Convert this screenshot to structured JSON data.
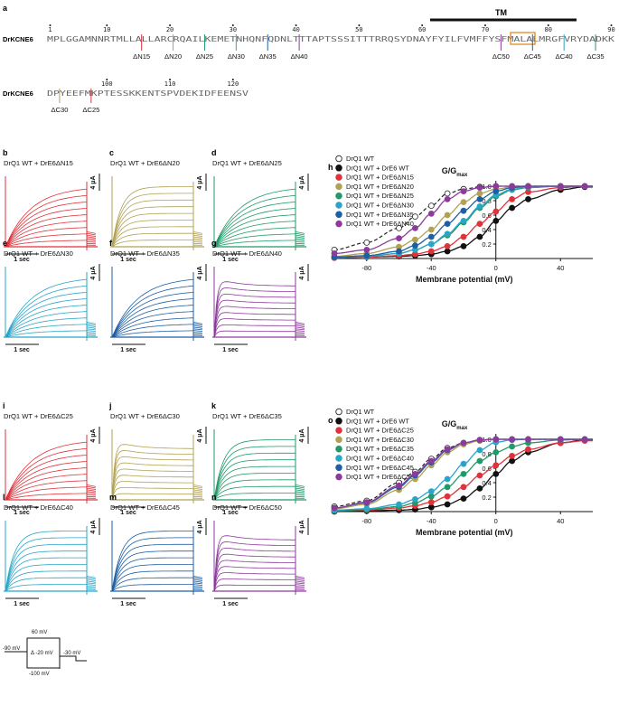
{
  "panel_letters": [
    "a",
    "b",
    "c",
    "d",
    "e",
    "f",
    "g",
    "h",
    "i",
    "j",
    "k",
    "l",
    "m",
    "n",
    "o"
  ],
  "sequence": {
    "protein": "DrKCNE6",
    "tm_label": "TM",
    "positions": [
      "1",
      "10",
      "20",
      "30",
      "40",
      "50",
      "60",
      "70",
      "80",
      "90",
      "100",
      "110",
      "120"
    ],
    "line1": "MPLGGAMNNRTMLLALLARCRQAILKEMETNHQNFQDNLTTTAPTSSSITTTRRQSYDNAYFYILFVMFFYSFMALALMRGFVRYDADKK",
    "line2": "DPYEEFMKPTESSKKENTSPVDEKIDFEENSV",
    "deletions_n": [
      {
        "label": "ΔN15",
        "color": "#e0323a"
      },
      {
        "label": "ΔN20",
        "color": "#b0a254"
      },
      {
        "label": "ΔN25",
        "color": "#1f9a68"
      },
      {
        "label": "ΔN30",
        "color": "#2aa5c8"
      },
      {
        "label": "ΔN35",
        "color": "#1e5fa3"
      },
      {
        "label": "ΔN40",
        "color": "#8e3a9d"
      }
    ],
    "deletions_c": [
      {
        "label": "ΔC50",
        "color": "#8e3a9d"
      },
      {
        "label": "ΔC45",
        "color": "#1e5fa3"
      },
      {
        "label": "ΔC40",
        "color": "#2aa5c8"
      },
      {
        "label": "ΔC35",
        "color": "#1f9a68"
      },
      {
        "label": "ΔC30",
        "color": "#b0a254"
      },
      {
        "label": "ΔC25",
        "color": "#e0323a"
      }
    ]
  },
  "traces": [
    {
      "title": "DrQ1 WT + DrE6ΔN15",
      "color": "#e0323a",
      "kind": "slow"
    },
    {
      "title": "DrQ1 WT + DrE6ΔN20",
      "color": "#b0a254",
      "kind": "fast"
    },
    {
      "title": "DrQ1 WT + DrE6ΔN25",
      "color": "#1f9a68",
      "kind": "slow"
    },
    {
      "title": "DrQ1 WT + DrE6ΔN30",
      "color": "#2aa5c8",
      "kind": "slow"
    },
    {
      "title": "DrQ1 WT + DrE6ΔN35",
      "color": "#1e5fa3",
      "kind": "slow"
    },
    {
      "title": "DrQ1 WT + DrE6ΔN40",
      "color": "#8e3a9d",
      "kind": "inact"
    },
    {
      "title": "DrQ1 WT + DrE6ΔC25",
      "color": "#e0323a",
      "kind": "slow"
    },
    {
      "title": "DrQ1 WT + DrE6ΔC30",
      "color": "#b0a254",
      "kind": "inact"
    },
    {
      "title": "DrQ1 WT + DrE6ΔC35",
      "color": "#1f9a68",
      "kind": "fast"
    },
    {
      "title": "DrQ1 WT + DrE6ΔC40",
      "color": "#2aa5c8",
      "kind": "fast"
    },
    {
      "title": "DrQ1 WT + DrE6ΔC45",
      "color": "#1e5fa3",
      "kind": "fast"
    },
    {
      "title": "DrQ1 WT + DrE6ΔC50",
      "color": "#8e3a9d",
      "kind": "inact"
    }
  ],
  "trace_scale": {
    "current": "4 μA",
    "time": "1 sec"
  },
  "protocol": {
    "top": "60 mV",
    "step": "Δ -20 mV",
    "hold": "-90 mV",
    "bottom": "-100 mV",
    "tail": "-30 mV"
  },
  "chart_data": [
    {
      "type": "scatter",
      "panel": "h",
      "xlabel": "Membrane potential (mV)",
      "ylabel": "G/G",
      "ylabel_sub": "max",
      "xlim": [
        -100,
        60
      ],
      "ylim": [
        0,
        1
      ],
      "xticks": [
        -80,
        -40,
        0,
        40
      ],
      "yticks": [
        0.2,
        0.4,
        0.6,
        0.8,
        1.0
      ],
      "x": [
        -100,
        -80,
        -60,
        -50,
        -40,
        -30,
        -20,
        -10,
        0,
        10,
        20,
        40,
        55
      ],
      "series": [
        {
          "name": "DrQ1 WT",
          "color": "#222222",
          "style": "dashed",
          "open": true,
          "values": [
            0.12,
            0.22,
            0.42,
            0.58,
            0.73,
            0.9,
            0.96,
            0.99,
            1.0,
            1.0,
            1.0,
            1.0,
            1.0
          ]
        },
        {
          "name": "DrQ1 WT + DrE6 WT",
          "color": "#111111",
          "style": "solid",
          "open": false,
          "values": [
            0.01,
            0.02,
            0.03,
            0.04,
            0.06,
            0.1,
            0.17,
            0.3,
            0.52,
            0.7,
            0.82,
            0.95,
            0.99
          ]
        },
        {
          "name": "DrQ1 WT + DrE6ΔN15",
          "color": "#e0323a",
          "style": "solid",
          "open": false,
          "values": [
            0.01,
            0.02,
            0.04,
            0.06,
            0.1,
            0.17,
            0.3,
            0.48,
            0.65,
            0.82,
            0.92,
            0.98,
            1.0
          ]
        },
        {
          "name": "DrQ1 WT + DrE6ΔN20",
          "color": "#b0a254",
          "style": "solid",
          "open": false,
          "values": [
            0.03,
            0.07,
            0.16,
            0.26,
            0.4,
            0.6,
            0.78,
            0.9,
            0.96,
            0.99,
            1.0,
            1.0,
            1.0
          ]
        },
        {
          "name": "DrQ1 WT + DrE6ΔN25",
          "color": "#1f9a68",
          "style": "solid",
          "open": false,
          "values": [
            0.02,
            0.03,
            0.07,
            0.12,
            0.2,
            0.32,
            0.5,
            0.7,
            0.86,
            0.95,
            0.98,
            1.0,
            1.0
          ]
        },
        {
          "name": "DrQ1 WT + DrE6ΔN30",
          "color": "#2aa5c8",
          "style": "solid",
          "open": false,
          "values": [
            0.02,
            0.03,
            0.07,
            0.12,
            0.2,
            0.34,
            0.52,
            0.72,
            0.88,
            0.96,
            0.99,
            1.0,
            1.0
          ]
        },
        {
          "name": "DrQ1 WT + DrE6ΔN35",
          "color": "#1e5fa3",
          "style": "solid",
          "open": false,
          "values": [
            0.02,
            0.04,
            0.1,
            0.18,
            0.3,
            0.48,
            0.66,
            0.82,
            0.93,
            0.98,
            1.0,
            1.0,
            1.0
          ]
        },
        {
          "name": "DrQ1 WT + DrE6ΔN40",
          "color": "#8e3a9d",
          "style": "solid",
          "open": false,
          "values": [
            0.07,
            0.12,
            0.28,
            0.42,
            0.62,
            0.82,
            0.93,
            0.98,
            1.0,
            1.0,
            1.0,
            1.0,
            1.0
          ]
        }
      ]
    },
    {
      "type": "scatter",
      "panel": "o",
      "xlabel": "Membrane potential (mV)",
      "ylabel": "G/G",
      "ylabel_sub": "max",
      "xlim": [
        -100,
        60
      ],
      "ylim": [
        0,
        1
      ],
      "xticks": [
        -80,
        -40,
        0,
        40
      ],
      "yticks": [
        0.2,
        0.4,
        0.6,
        0.8,
        1.0
      ],
      "x": [
        -100,
        -80,
        -60,
        -50,
        -40,
        -30,
        -20,
        -10,
        0,
        10,
        20,
        40,
        55
      ],
      "series": [
        {
          "name": "DrQ1 WT",
          "color": "#222222",
          "style": "dashed",
          "open": true,
          "values": [
            0.07,
            0.15,
            0.4,
            0.55,
            0.73,
            0.88,
            0.95,
            0.99,
            1.0,
            1.0,
            1.0,
            1.0,
            1.0
          ]
        },
        {
          "name": "DrQ1 WT + DrE6 WT",
          "color": "#111111",
          "style": "solid",
          "open": false,
          "values": [
            0.0,
            0.01,
            0.02,
            0.03,
            0.06,
            0.1,
            0.18,
            0.32,
            0.52,
            0.7,
            0.82,
            0.95,
            0.99
          ]
        },
        {
          "name": "DrQ1 WT + DrE6ΔC25",
          "color": "#e0323a",
          "style": "solid",
          "open": false,
          "values": [
            0.01,
            0.02,
            0.05,
            0.08,
            0.13,
            0.21,
            0.34,
            0.5,
            0.64,
            0.77,
            0.86,
            0.95,
            0.98
          ]
        },
        {
          "name": "DrQ1 WT + DrE6ΔC30",
          "color": "#b0a254",
          "style": "solid",
          "open": false,
          "values": [
            0.04,
            0.1,
            0.3,
            0.45,
            0.64,
            0.82,
            0.93,
            0.98,
            1.0,
            1.0,
            1.0,
            1.0,
            1.0
          ]
        },
        {
          "name": "DrQ1 WT + DrE6ΔC35",
          "color": "#1f9a68",
          "style": "solid",
          "open": false,
          "values": [
            0.01,
            0.03,
            0.07,
            0.12,
            0.21,
            0.34,
            0.52,
            0.7,
            0.82,
            0.9,
            0.95,
            0.99,
            1.0
          ]
        },
        {
          "name": "DrQ1 WT + DrE6ΔC40",
          "color": "#2aa5c8",
          "style": "solid",
          "open": false,
          "values": [
            0.02,
            0.04,
            0.1,
            0.17,
            0.28,
            0.45,
            0.66,
            0.85,
            0.96,
            0.99,
            1.0,
            1.0,
            1.0
          ]
        },
        {
          "name": "DrQ1 WT + DrE6ΔC45",
          "color": "#1e5fa3",
          "style": "solid",
          "open": false,
          "values": [
            0.05,
            0.12,
            0.34,
            0.5,
            0.68,
            0.85,
            0.95,
            0.99,
            1.0,
            1.0,
            1.0,
            1.0,
            1.0
          ]
        },
        {
          "name": "DrQ1 WT + DrE6ΔC50",
          "color": "#8e3a9d",
          "style": "solid",
          "open": false,
          "values": [
            0.05,
            0.13,
            0.36,
            0.52,
            0.7,
            0.86,
            0.95,
            0.99,
            1.0,
            1.0,
            1.0,
            1.0,
            1.0
          ]
        }
      ]
    }
  ]
}
